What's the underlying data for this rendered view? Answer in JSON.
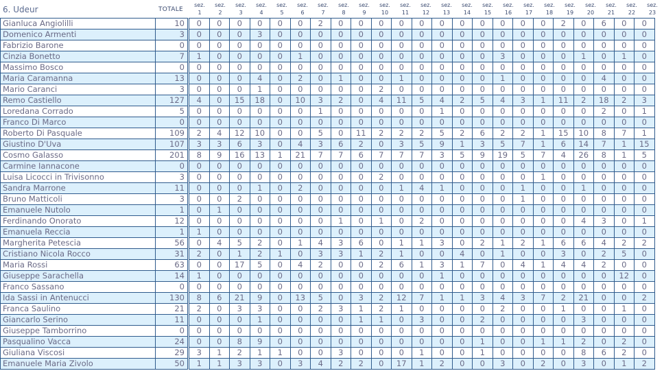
{
  "header": {
    "title": "6. Udeur",
    "total_label": "TOTALE",
    "section_prefix": "sez.",
    "sections": [
      "1",
      "2",
      "3",
      "4",
      "5",
      "6",
      "7",
      "8",
      "9",
      "10",
      "11",
      "12",
      "13",
      "14",
      "15",
      "16",
      "17",
      "18",
      "19",
      "20",
      "21",
      "22",
      "23"
    ]
  },
  "colors": {
    "border": "#2e5a8c",
    "alt_row": "#dcf0fc",
    "text": "#6a6a86"
  },
  "rows": [
    {
      "name": "Gianluca Angiolilli",
      "total": 10,
      "sez": [
        0,
        0,
        0,
        0,
        0,
        0,
        2,
        0,
        0,
        0,
        0,
        0,
        0,
        0,
        0,
        0,
        0,
        0,
        2,
        0,
        6,
        0,
        0
      ]
    },
    {
      "name": "Domenico Armenti",
      "total": 3,
      "sez": [
        0,
        0,
        0,
        3,
        0,
        0,
        0,
        0,
        0,
        0,
        0,
        0,
        0,
        0,
        0,
        0,
        0,
        0,
        0,
        0,
        0,
        0,
        0
      ]
    },
    {
      "name": "Fabrizio Barone",
      "total": 0,
      "sez": [
        0,
        0,
        0,
        0,
        0,
        0,
        0,
        0,
        0,
        0,
        0,
        0,
        0,
        0,
        0,
        0,
        0,
        0,
        0,
        0,
        0,
        0,
        0
      ]
    },
    {
      "name": "Cinzia Bonetto",
      "total": 7,
      "sez": [
        1,
        0,
        0,
        0,
        0,
        1,
        0,
        0,
        0,
        0,
        0,
        0,
        0,
        0,
        0,
        3,
        0,
        0,
        0,
        1,
        0,
        1,
        0
      ]
    },
    {
      "name": "Massimo Bosco",
      "total": 0,
      "sez": [
        0,
        0,
        0,
        0,
        0,
        0,
        0,
        0,
        0,
        0,
        0,
        0,
        0,
        0,
        0,
        0,
        0,
        0,
        0,
        0,
        0,
        0,
        0
      ]
    },
    {
      "name": "Maria Caramanna",
      "total": 13,
      "sez": [
        0,
        0,
        0,
        4,
        0,
        2,
        0,
        1,
        0,
        0,
        1,
        0,
        0,
        0,
        0,
        1,
        0,
        0,
        0,
        0,
        4,
        0,
        0
      ]
    },
    {
      "name": "Mario Caranci",
      "total": 3,
      "sez": [
        0,
        0,
        0,
        1,
        0,
        0,
        0,
        0,
        0,
        2,
        0,
        0,
        0,
        0,
        0,
        0,
        0,
        0,
        0,
        0,
        0,
        0,
        0
      ]
    },
    {
      "name": "Remo Castiello",
      "total": 127,
      "sez": [
        4,
        0,
        15,
        18,
        0,
        10,
        3,
        2,
        0,
        4,
        11,
        5,
        4,
        2,
        5,
        4,
        3,
        1,
        11,
        2,
        18,
        2,
        3
      ]
    },
    {
      "name": "Loredana Corrado",
      "total": 5,
      "sez": [
        0,
        0,
        0,
        0,
        0,
        0,
        1,
        0,
        0,
        0,
        0,
        0,
        1,
        0,
        0,
        0,
        0,
        0,
        0,
        0,
        2,
        0,
        1
      ]
    },
    {
      "name": "Franco Di Marco",
      "total": 0,
      "sez": [
        0,
        0,
        0,
        0,
        0,
        0,
        0,
        0,
        0,
        0,
        0,
        0,
        0,
        0,
        0,
        0,
        0,
        0,
        0,
        0,
        0,
        0,
        0
      ]
    },
    {
      "name": "Roberto Di Pasquale",
      "total": 109,
      "sez": [
        2,
        4,
        12,
        10,
        0,
        0,
        5,
        0,
        11,
        2,
        2,
        2,
        5,
        2,
        6,
        2,
        2,
        1,
        15,
        10,
        8,
        7,
        1
      ]
    },
    {
      "name": "Giustino D'Uva",
      "total": 107,
      "sez": [
        3,
        3,
        6,
        3,
        0,
        4,
        3,
        6,
        2,
        0,
        3,
        5,
        9,
        1,
        3,
        5,
        7,
        1,
        6,
        14,
        7,
        1,
        15
      ]
    },
    {
      "name": "Cosmo Galasso",
      "total": 201,
      "sez": [
        8,
        9,
        16,
        13,
        1,
        21,
        7,
        7,
        6,
        7,
        7,
        7,
        3,
        5,
        9,
        19,
        5,
        7,
        4,
        26,
        8,
        1,
        5
      ]
    },
    {
      "name": "Carmine Iannacone",
      "total": 0,
      "sez": [
        0,
        0,
        0,
        0,
        0,
        0,
        0,
        0,
        0,
        0,
        0,
        0,
        0,
        0,
        0,
        0,
        0,
        0,
        0,
        0,
        0,
        0,
        0
      ]
    },
    {
      "name": "Luisa Licocci in Trivisonno",
      "total": 3,
      "sez": [
        0,
        0,
        0,
        0,
        0,
        0,
        0,
        0,
        0,
        2,
        0,
        0,
        0,
        0,
        0,
        0,
        0,
        1,
        0,
        0,
        0,
        0,
        0
      ]
    },
    {
      "name": "Sandra Marrone",
      "total": 11,
      "sez": [
        0,
        0,
        0,
        1,
        0,
        2,
        0,
        0,
        0,
        0,
        1,
        4,
        1,
        0,
        0,
        0,
        1,
        0,
        0,
        1,
        0,
        0,
        0
      ]
    },
    {
      "name": "Bruno Matticoli",
      "total": 3,
      "sez": [
        0,
        0,
        2,
        0,
        0,
        0,
        0,
        0,
        0,
        0,
        0,
        0,
        0,
        0,
        0,
        0,
        1,
        0,
        0,
        0,
        0,
        0,
        0
      ]
    },
    {
      "name": "Emanuele Nutolo",
      "total": 1,
      "sez": [
        0,
        1,
        0,
        0,
        0,
        0,
        0,
        0,
        0,
        0,
        0,
        0,
        0,
        0,
        0,
        0,
        0,
        0,
        0,
        0,
        0,
        0,
        0
      ]
    },
    {
      "name": "Ferdinando Onorato",
      "total": 12,
      "sez": [
        0,
        0,
        0,
        0,
        0,
        0,
        0,
        1,
        0,
        1,
        0,
        2,
        0,
        0,
        0,
        0,
        0,
        0,
        0,
        4,
        3,
        0,
        1
      ]
    },
    {
      "name": "Emanuela Reccia",
      "total": 1,
      "sez": [
        1,
        0,
        0,
        0,
        0,
        0,
        0,
        0,
        0,
        0,
        0,
        0,
        0,
        0,
        0,
        0,
        0,
        0,
        0,
        0,
        0,
        0,
        0
      ]
    },
    {
      "name": "Margherita Petescia",
      "total": 56,
      "sez": [
        0,
        4,
        5,
        2,
        0,
        1,
        4,
        3,
        6,
        0,
        1,
        1,
        3,
        0,
        2,
        1,
        2,
        1,
        6,
        6,
        4,
        2,
        2
      ]
    },
    {
      "name": "Cristiano Nicola Rocco",
      "total": 31,
      "sez": [
        2,
        0,
        1,
        2,
        1,
        0,
        3,
        3,
        1,
        2,
        1,
        0,
        0,
        4,
        0,
        1,
        0,
        0,
        3,
        0,
        2,
        5,
        0
      ]
    },
    {
      "name": "Maria Rossi",
      "total": 63,
      "sez": [
        0,
        0,
        17,
        5,
        0,
        4,
        2,
        0,
        0,
        2,
        6,
        1,
        3,
        1,
        7,
        0,
        4,
        1,
        4,
        4,
        2,
        0,
        0
      ]
    },
    {
      "name": "Giuseppe Sarachella",
      "total": 14,
      "sez": [
        1,
        0,
        0,
        0,
        0,
        0,
        0,
        0,
        0,
        0,
        0,
        0,
        1,
        0,
        0,
        0,
        0,
        0,
        0,
        0,
        0,
        12,
        0
      ]
    },
    {
      "name": "Franco Sassano",
      "total": 0,
      "sez": [
        0,
        0,
        0,
        0,
        0,
        0,
        0,
        0,
        0,
        0,
        0,
        0,
        0,
        0,
        0,
        0,
        0,
        0,
        0,
        0,
        0,
        0,
        0
      ]
    },
    {
      "name": "Ida Sassi in Antenucci",
      "total": 130,
      "sez": [
        8,
        6,
        21,
        9,
        0,
        13,
        5,
        0,
        3,
        2,
        12,
        7,
        1,
        1,
        3,
        4,
        3,
        7,
        2,
        21,
        0,
        0,
        2
      ]
    },
    {
      "name": "Franca Saulino",
      "total": 21,
      "sez": [
        2,
        0,
        3,
        3,
        0,
        0,
        2,
        3,
        1,
        2,
        1,
        0,
        0,
        0,
        0,
        2,
        0,
        0,
        1,
        0,
        0,
        1,
        0
      ]
    },
    {
      "name": "Giancarlo Serino",
      "total": 11,
      "sez": [
        0,
        0,
        0,
        1,
        0,
        0,
        0,
        0,
        1,
        1,
        0,
        3,
        0,
        0,
        2,
        0,
        0,
        0,
        0,
        3,
        0,
        0,
        0
      ]
    },
    {
      "name": "Giuseppe Tamborrino",
      "total": 0,
      "sez": [
        0,
        0,
        0,
        0,
        0,
        0,
        0,
        0,
        0,
        0,
        0,
        0,
        0,
        0,
        0,
        0,
        0,
        0,
        0,
        0,
        0,
        0,
        0
      ]
    },
    {
      "name": "Pasqualino Vacca",
      "total": 24,
      "sez": [
        0,
        0,
        8,
        9,
        0,
        0,
        0,
        0,
        0,
        0,
        0,
        0,
        0,
        0,
        1,
        0,
        0,
        1,
        1,
        2,
        0,
        2,
        0
      ]
    },
    {
      "name": "Giuliana Viscosi",
      "total": 29,
      "sez": [
        3,
        1,
        2,
        1,
        1,
        0,
        0,
        3,
        0,
        0,
        0,
        1,
        0,
        0,
        1,
        0,
        0,
        0,
        0,
        8,
        6,
        2,
        0
      ]
    },
    {
      "name": "Emanuele Maria Zivolo",
      "total": 50,
      "sez": [
        1,
        1,
        3,
        3,
        0,
        3,
        4,
        2,
        2,
        0,
        17,
        1,
        2,
        0,
        0,
        3,
        0,
        2,
        0,
        3,
        0,
        1,
        2
      ]
    }
  ]
}
